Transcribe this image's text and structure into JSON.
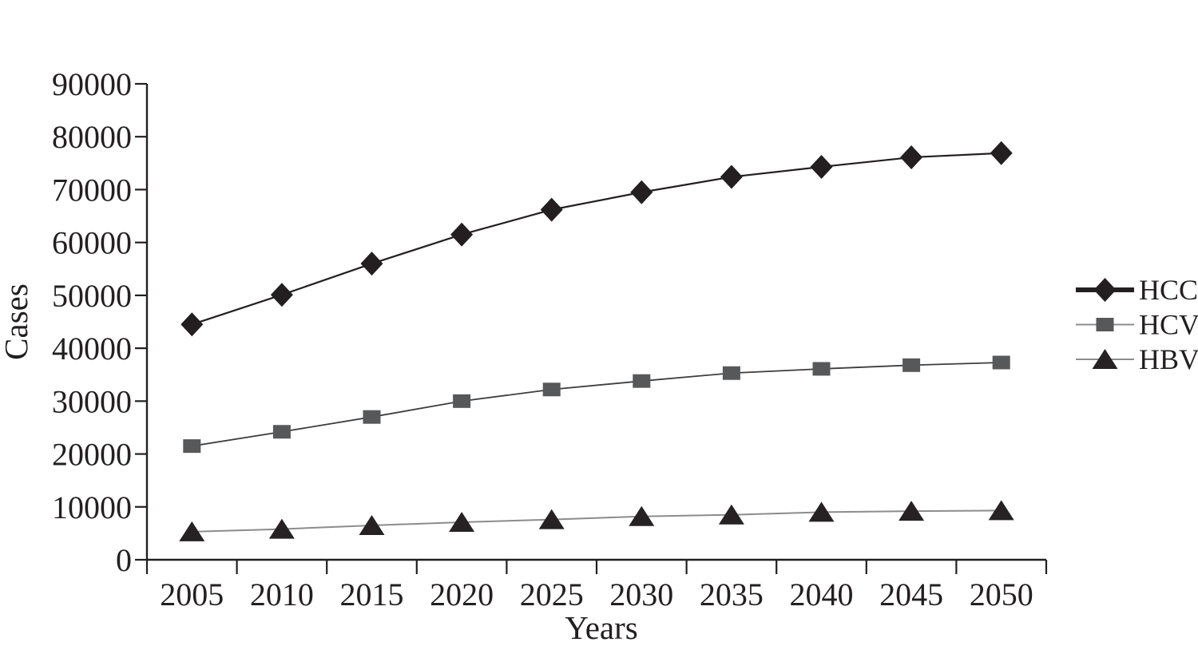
{
  "chart_data": {
    "type": "line",
    "title": "",
    "xlabel": "Years",
    "ylabel": "Cases",
    "categories": [
      "2005",
      "2010",
      "2015",
      "2020",
      "2025",
      "2030",
      "2035",
      "2040",
      "2045",
      "2050"
    ],
    "ylim": [
      0,
      90000
    ],
    "y_tick_step": 10000,
    "y_tick_labels": [
      "0",
      "10000",
      "20000",
      "30000",
      "40000",
      "50000",
      "60000",
      "70000",
      "80000",
      "90000"
    ],
    "grid": false,
    "legend_position": "right",
    "series": [
      {
        "name": "HCC",
        "marker": "diamond",
        "marker_color": "#231f20",
        "line_color": "#231f20",
        "line_width": 2.2,
        "legend_line_width": 6,
        "values": [
          44500,
          50100,
          56000,
          61500,
          66200,
          69500,
          72400,
          74300,
          76100,
          76900
        ]
      },
      {
        "name": "HCV",
        "marker": "square",
        "marker_color": "#57585a",
        "line_color": "#3d3d3f",
        "line_width": 1.8,
        "legend_line_width": 2,
        "values": [
          21500,
          24200,
          27000,
          30000,
          32200,
          33800,
          35300,
          36100,
          36800,
          37300
        ]
      },
      {
        "name": "HBV",
        "marker": "triangle",
        "marker_color": "#262223",
        "line_color": "#8c8c8c",
        "line_width": 2,
        "legend_line_width": 2,
        "values": [
          5300,
          5800,
          6500,
          7100,
          7600,
          8200,
          8500,
          9000,
          9200,
          9300
        ]
      }
    ]
  },
  "colors": {
    "background": "#ffffff",
    "axis": "#231f20",
    "text": "#231f20"
  }
}
